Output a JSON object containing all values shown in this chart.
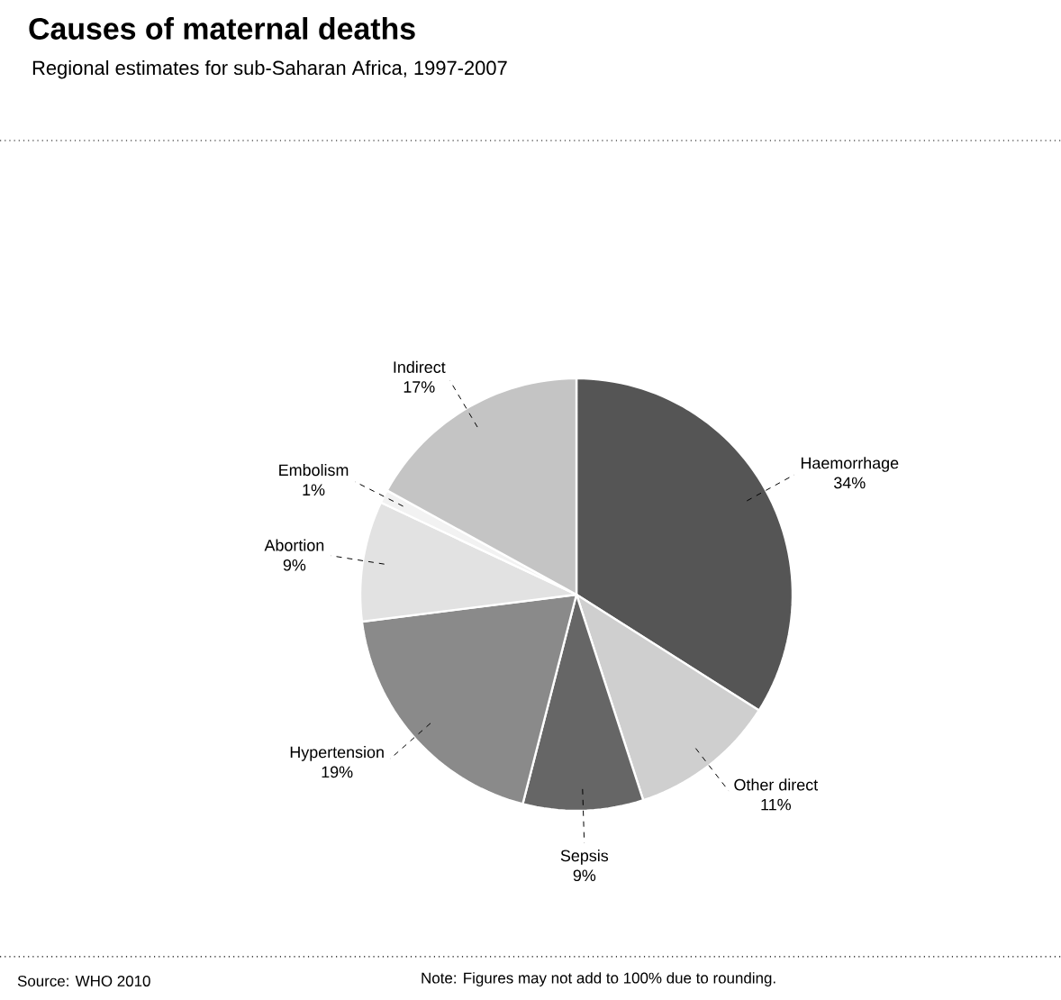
{
  "chart_data": {
    "type": "pie",
    "title": "Causes of maternal deaths",
    "subtitle": "Regional estimates for sub-Saharan Africa, 1997-2007",
    "categories": [
      "Haemorrhage",
      "Other direct",
      "Sepsis",
      "Hypertension",
      "Abortion",
      "Embolism",
      "Indirect"
    ],
    "values": [
      34,
      11,
      9,
      19,
      9,
      1,
      17
    ],
    "colors": [
      "#555555",
      "#cfcfcf",
      "#666666",
      "#8a8a8a",
      "#e2e2e2",
      "#f2f2f2",
      "#c4c4c4"
    ],
    "value_labels": [
      "34%",
      "11%",
      "9%",
      "19%",
      "9%",
      "1%",
      "17%"
    ],
    "annotations": [
      "Source: WHO 2010",
      "Note: Figures may not add to 100% due to rounding."
    ]
  }
}
